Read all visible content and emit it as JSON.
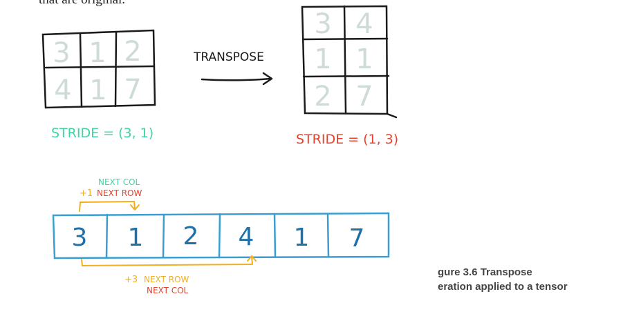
{
  "top_text": "that are original.",
  "original": {
    "cells": [
      "3",
      "1",
      "2",
      "4",
      "1",
      "7"
    ],
    "stride_label": "STRIDE = (3, 1)"
  },
  "transposed": {
    "cells": [
      "3",
      "4",
      "1",
      "1",
      "2",
      "7"
    ],
    "stride_label": "STRIDE = (1, 3)"
  },
  "transpose_label": "TRANSPOSE",
  "storage": {
    "cells": [
      "3",
      "1",
      "2",
      "4",
      "1",
      "7"
    ],
    "upper": {
      "step": "+1",
      "next_col": "NEXT COL",
      "next_row": "NEXT ROW"
    },
    "lower": {
      "step": "+3",
      "next_row": "NEXT ROW",
      "next_col": "NEXT COL"
    }
  },
  "caption": {
    "line1": "gure 3.6   Transpose",
    "line2": "eration applied to a tensor"
  },
  "colors": {
    "ink": "#1a1a1a",
    "faint_digit": "#cfdbd8",
    "teal": "#3fd3a6",
    "red": "#e8402a",
    "orange": "#f0b020",
    "blue": "#3a9fd0",
    "blue_digit": "#1f6fa8"
  }
}
